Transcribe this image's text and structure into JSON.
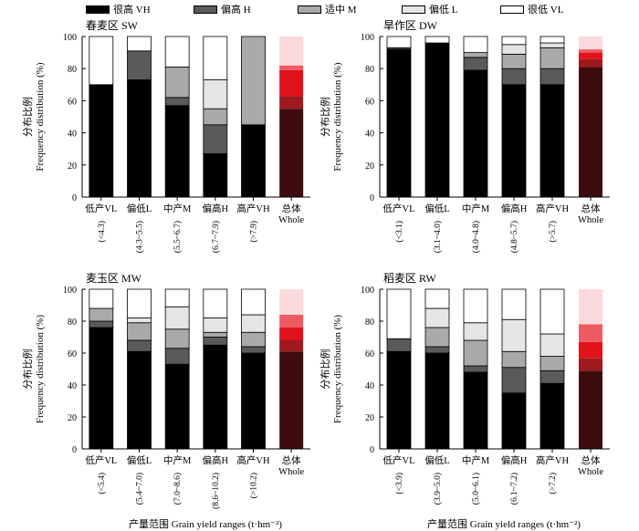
{
  "legend": [
    {
      "label": "很高 VH",
      "color": "#000000"
    },
    {
      "label": "偏高 H",
      "color": "#5a5a5a"
    },
    {
      "label": "适中 M",
      "color": "#a9a9a9"
    },
    {
      "label": "偏低 L",
      "color": "#e5e5e5"
    },
    {
      "label": "很低 VL",
      "color": "#ffffff"
    }
  ],
  "axes": {
    "ylabel_cn": "分布比例",
    "ylabel_en": "Frequency distribution (%)",
    "xlabel": "产量范围 Grain yield ranges (t·hm⁻²)",
    "yticks": [
      "0",
      "20",
      "40",
      "60",
      "80",
      "100"
    ]
  },
  "whole_colors": [
    "#3d0c0e",
    "#9e1a1e",
    "#e0121a",
    "#ef5b62",
    "#fbd9dc"
  ],
  "chart_data": [
    {
      "type": "bar",
      "stacked": true,
      "title": "春麦区 SW",
      "categories": [
        "低产VL",
        "偏低L",
        "中产M",
        "偏高H",
        "高产VH",
        "总体 Whole"
      ],
      "ranges": [
        "(<4.3)",
        "(4.3~5.5)",
        "(5.5~6.7)",
        "(6.7~7.9)",
        "(>7.9)",
        ""
      ],
      "ylim": [
        0,
        100
      ],
      "series": [
        {
          "name": "很高 VH",
          "values": [
            70,
            73,
            57,
            27,
            45,
            55
          ]
        },
        {
          "name": "偏高 H",
          "values": [
            0,
            18,
            5,
            18,
            0,
            8
          ]
        },
        {
          "name": "适中 M",
          "values": [
            0,
            0,
            19,
            10,
            55,
            16
          ]
        },
        {
          "name": "偏低 L",
          "values": [
            0,
            0,
            0,
            18,
            0,
            3
          ]
        },
        {
          "name": "很低 VL",
          "values": [
            30,
            9,
            19,
            27,
            0,
            18
          ]
        }
      ]
    },
    {
      "type": "bar",
      "stacked": true,
      "title": "旱作区 DW",
      "categories": [
        "低产VL",
        "偏低L",
        "中产M",
        "偏高H",
        "高产VH",
        "总体 Whole"
      ],
      "ranges": [
        "(<3.1)",
        "(3.1~4.0)",
        "(4.0~4.8)",
        "(4.8~5.7)",
        "(>5.7)",
        ""
      ],
      "ylim": [
        0,
        100
      ],
      "series": [
        {
          "name": "很高 VH",
          "values": [
            92,
            96,
            79,
            70,
            70,
            81
          ]
        },
        {
          "name": "偏高 H",
          "values": [
            1,
            0,
            8,
            10,
            10,
            5
          ]
        },
        {
          "name": "适中 M",
          "values": [
            0,
            0,
            3,
            9,
            13,
            4
          ]
        },
        {
          "name": "偏低 L",
          "values": [
            0,
            0,
            0,
            6,
            3,
            2
          ]
        },
        {
          "name": "很低 VL",
          "values": [
            7,
            4,
            10,
            5,
            4,
            8
          ]
        }
      ]
    },
    {
      "type": "bar",
      "stacked": true,
      "title": "麦玉区 MW",
      "categories": [
        "低产VL",
        "偏低L",
        "中产M",
        "偏高H",
        "高产VH",
        "总体 Whole"
      ],
      "ranges": [
        "(<5.4)",
        "(5.4~7.0)",
        "(7.0~8.6)",
        "(8.6~10.2)",
        "(>10.2)",
        ""
      ],
      "ylim": [
        0,
        100
      ],
      "series": [
        {
          "name": "很高 VH",
          "values": [
            76,
            61,
            53,
            65,
            60,
            61
          ]
        },
        {
          "name": "偏高 H",
          "values": [
            4,
            7,
            10,
            5,
            4,
            7
          ]
        },
        {
          "name": "适中 M",
          "values": [
            8,
            11,
            12,
            3,
            9,
            8
          ]
        },
        {
          "name": "偏低 L",
          "values": [
            0,
            3,
            14,
            9,
            11,
            8
          ]
        },
        {
          "name": "很低 VL",
          "values": [
            12,
            18,
            11,
            18,
            16,
            16
          ]
        }
      ]
    },
    {
      "type": "bar",
      "stacked": true,
      "title": "稻麦区 RW",
      "categories": [
        "低产VL",
        "偏低L",
        "中产M",
        "偏高H",
        "高产VH",
        "总体 Whole"
      ],
      "ranges": [
        "(<3.9)",
        "(3.9~5.0)",
        "(5.0~6.1)",
        "(6.1~7.2)",
        "(>7.2)",
        ""
      ],
      "ylim": [
        0,
        100
      ],
      "series": [
        {
          "name": "很高 VH",
          "values": [
            61,
            60,
            48,
            35,
            41,
            49
          ]
        },
        {
          "name": "偏高 H",
          "values": [
            8,
            4,
            4,
            16,
            8,
            8
          ]
        },
        {
          "name": "适中 M",
          "values": [
            0,
            12,
            16,
            10,
            9,
            10
          ]
        },
        {
          "name": "偏低 L",
          "values": [
            0,
            12,
            11,
            20,
            14,
            11
          ]
        },
        {
          "name": "很低 VL",
          "values": [
            31,
            12,
            21,
            19,
            28,
            22
          ]
        }
      ]
    }
  ]
}
